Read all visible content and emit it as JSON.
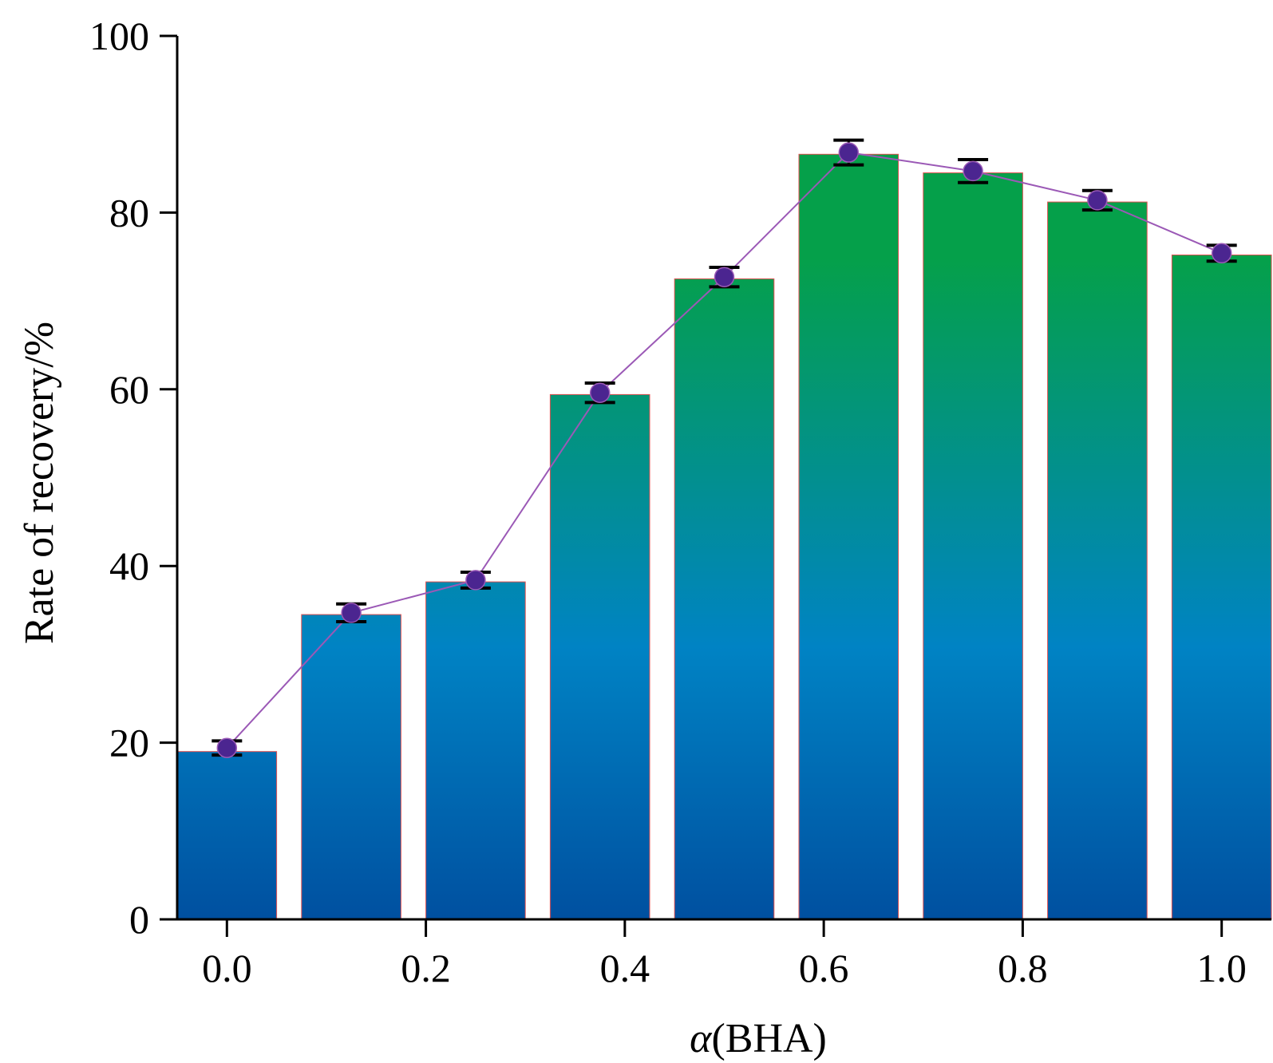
{
  "chart_data": {
    "type": "bar",
    "xlabel_symbol": "α",
    "xlabel_rest": "(BHA)",
    "ylabel": "Rate of recovery/%",
    "xlim": [
      -0.05,
      1.05
    ],
    "ylim": [
      0,
      100
    ],
    "x_ticks": [
      "0.0",
      "0.2",
      "0.4",
      "0.6",
      "0.8",
      "1.0"
    ],
    "x_tick_values": [
      0.0,
      0.2,
      0.4,
      0.6,
      0.8,
      1.0
    ],
    "y_ticks": [
      "0",
      "20",
      "40",
      "60",
      "80",
      "100"
    ],
    "y_tick_values": [
      0,
      20,
      40,
      60,
      80,
      100
    ],
    "x": [
      0.0,
      0.125,
      0.25,
      0.375,
      0.5,
      0.625,
      0.75,
      0.875,
      1.0
    ],
    "values": [
      19.0,
      34.5,
      38.2,
      59.4,
      72.5,
      86.6,
      84.5,
      81.2,
      75.2
    ],
    "line_points": [
      19.4,
      34.7,
      38.4,
      59.6,
      72.7,
      86.8,
      84.7,
      81.4,
      75.4
    ],
    "error": [
      0.8,
      1.0,
      0.9,
      1.1,
      1.1,
      1.4,
      1.3,
      1.1,
      0.9
    ],
    "bar_width": 0.1,
    "colors": {
      "bar_top": "#05a04a",
      "bar_mid": "#0083c4",
      "bar_bottom": "#0050a0",
      "bar_edge": "#e05050",
      "line": "#9b59b6",
      "marker": "#4b2590",
      "errorbar": "#000000",
      "axis": "#000000"
    },
    "grid": false,
    "legend": "none"
  }
}
